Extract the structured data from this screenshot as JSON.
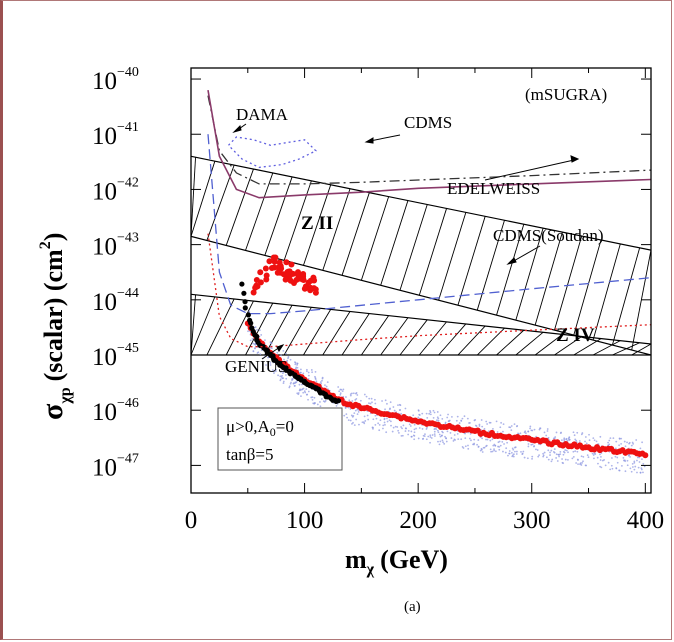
{
  "chart_data": {
    "type": "line",
    "xlabel": "m",
    "xlabel_sub": "χ",
    "xlabel_unit": "(GeV)",
    "ylabel_main": "σ",
    "ylabel_sub": "χp",
    "ylabel_rest": "(scalar) (cm",
    "ylabel_sup": "2",
    "ylabel_close": ")",
    "caption": "(a)",
    "model_label": "(mSUGRA)",
    "params": {
      "line1": "μ>0,A",
      "line1_sub": "0",
      "line1_end": "=0",
      "line2": "tanβ=5"
    },
    "x_ticks": [
      "0",
      "100",
      "200",
      "300",
      "400"
    ],
    "x_tick_values": [
      0,
      100,
      200,
      300,
      400
    ],
    "y_tick_base": "10",
    "y_tick_exponents": [
      "−40",
      "−41",
      "−42",
      "−43",
      "−44",
      "−45",
      "−46",
      "−47"
    ],
    "y_tick_values": [
      -40,
      -41,
      -42,
      -43,
      -44,
      -45,
      -46,
      -47
    ],
    "xlim": [
      0,
      405
    ],
    "ylim_log10": [
      -47.5,
      -39.8
    ],
    "y_log_scale": true,
    "grid": false,
    "annotations": {
      "dama": "DAMA",
      "cdms": "CDMS",
      "edelweiss": "EDELWEISS",
      "cdms_soudan": "CDMS(Soudan)",
      "genius": "GENIUS",
      "zone2": "Z II",
      "zone4": "Z IV"
    },
    "series": [
      {
        "name": "CDMS",
        "color": "#333333",
        "style": "dashdot",
        "x": [
          15,
          25,
          40,
          60,
          100,
          150,
          200,
          300,
          405
        ],
        "y": [
          -40.3,
          -41.3,
          -41.7,
          -41.9,
          -41.9,
          -41.87,
          -41.83,
          -41.75,
          -41.65
        ]
      },
      {
        "name": "EDELWEISS",
        "color": "#8a3a6a",
        "style": "solid",
        "x": [
          15,
          25,
          40,
          60,
          100,
          150,
          200,
          300,
          405
        ],
        "y": [
          -40.2,
          -41.4,
          -42.0,
          -42.15,
          -42.1,
          -42.05,
          -41.98,
          -41.9,
          -41.82
        ]
      },
      {
        "name": "CDMS(Soudan)",
        "color": "#5060d0",
        "style": "dashed",
        "x": [
          15,
          25,
          35,
          50,
          70,
          100,
          150,
          200,
          300,
          405
        ],
        "y": [
          -41.0,
          -43.5,
          -44.1,
          -44.25,
          -44.25,
          -44.2,
          -44.1,
          -44.0,
          -43.8,
          -43.6
        ]
      },
      {
        "name": "GENIUS",
        "color": "#e02020",
        "style": "dotted",
        "x": [
          15,
          25,
          35,
          50,
          70,
          100,
          150,
          200,
          300,
          405
        ],
        "y": [
          -42.8,
          -44.3,
          -44.7,
          -44.85,
          -44.85,
          -44.8,
          -44.72,
          -44.65,
          -44.55,
          -44.45
        ]
      },
      {
        "name": "DAMA",
        "color": "#6060e0",
        "style": "dotted",
        "x": [
          33,
          40,
          55,
          70,
          85,
          100,
          110,
          95,
          80,
          60,
          45,
          33
        ],
        "y": [
          -41.2,
          -41.05,
          -41.1,
          -41.2,
          -41.15,
          -41.1,
          -41.3,
          -41.45,
          -41.55,
          -41.6,
          -41.45,
          -41.2
        ]
      }
    ],
    "zone2_band": {
      "upper": {
        "x": [
          0,
          405
        ],
        "y": [
          -41.4,
          -43.1
        ]
      },
      "lower": {
        "x": [
          0,
          405
        ],
        "y": [
          -42.85,
          -45.0
        ]
      }
    },
    "zone4_band": {
      "upper": {
        "x": [
          0,
          405
        ],
        "y": [
          -43.9,
          -44.8
        ]
      },
      "lower": {
        "x": [
          0,
          405
        ],
        "y": [
          -45.0,
          -45.0
        ]
      }
    },
    "red_points": {
      "color": "#ee1111",
      "x": [
        50,
        55,
        60,
        65,
        70,
        80,
        90,
        100,
        110,
        120,
        130,
        140,
        160,
        180,
        200,
        220,
        240,
        260,
        280,
        300,
        320,
        340,
        360,
        380,
        400
      ],
      "y": [
        -44.4,
        -44.6,
        -44.75,
        -44.85,
        -44.95,
        -45.15,
        -45.3,
        -45.45,
        -45.55,
        -45.7,
        -45.8,
        -45.9,
        -46.0,
        -46.1,
        -46.2,
        -46.28,
        -46.35,
        -46.42,
        -46.48,
        -46.54,
        -46.6,
        -46.65,
        -46.7,
        -46.75,
        -46.8
      ]
    },
    "red_cluster": {
      "x": [
        55,
        60,
        65,
        70,
        75,
        80,
        90,
        100,
        110
      ],
      "y": [
        -43.7,
        -43.6,
        -43.5,
        -43.35,
        -43.4,
        -43.45,
        -43.55,
        -43.65,
        -43.75
      ]
    },
    "black_points": {
      "color": "#000000",
      "x": [
        45,
        47,
        50,
        55,
        60,
        65,
        70,
        80,
        90,
        100,
        110,
        120,
        130
      ],
      "y": [
        -43.7,
        -44.0,
        -44.3,
        -44.6,
        -44.8,
        -44.9,
        -45.0,
        -45.2,
        -45.35,
        -45.5,
        -45.6,
        -45.75,
        -45.85
      ]
    },
    "blue_scatter": {
      "color": "#8a94e0",
      "x_range": [
        50,
        400
      ],
      "description_band_log10_offset": [
        -0.35,
        0.25
      ]
    }
  }
}
